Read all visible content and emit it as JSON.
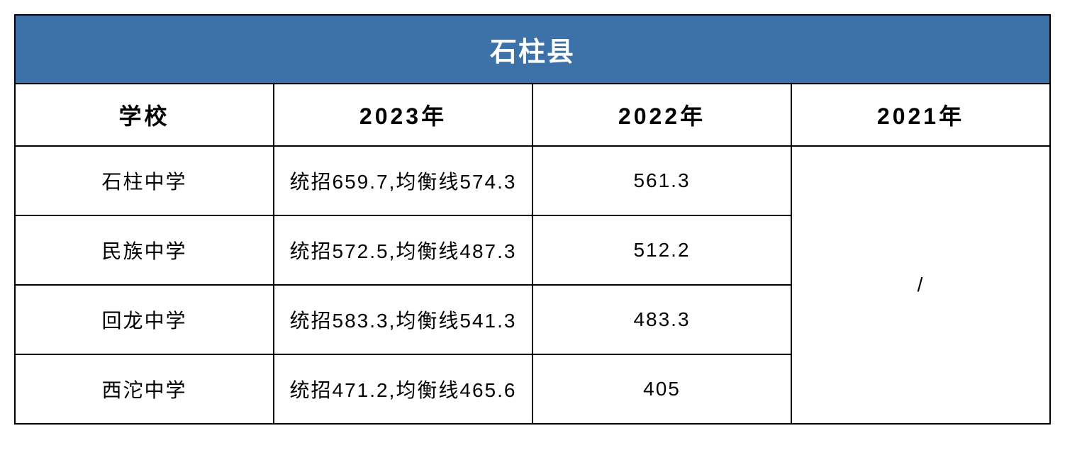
{
  "table": {
    "title": "石柱县",
    "title_bg_color": "#3d72a8",
    "title_text_color": "#ffffff",
    "border_color": "#000000",
    "background_color": "#ffffff",
    "text_color": "#000000",
    "title_fontsize": 38,
    "header_fontsize": 32,
    "data_fontsize": 28,
    "columns": [
      {
        "key": "school",
        "label": "学校",
        "width": "19%"
      },
      {
        "key": "year2023",
        "label": "2023年",
        "width": "40%"
      },
      {
        "key": "year2022",
        "label": "2022年",
        "width": "22%"
      },
      {
        "key": "year2021",
        "label": "2021年",
        "width": "19%"
      }
    ],
    "rows": [
      {
        "school": "石柱中学",
        "year2023": "统招659.7,均衡线574.3",
        "year2022": "561.3",
        "year2021": ""
      },
      {
        "school": "民族中学",
        "year2023": "统招572.5,均衡线487.3",
        "year2022": "512.2",
        "year2021": "/"
      },
      {
        "school": "回龙中学",
        "year2023": "统招583.3,均衡线541.3",
        "year2022": "483.3",
        "year2021": ""
      },
      {
        "school": "西沱中学",
        "year2023": "统招471.2,均衡线465.6",
        "year2022": "405",
        "year2021": ""
      }
    ]
  }
}
